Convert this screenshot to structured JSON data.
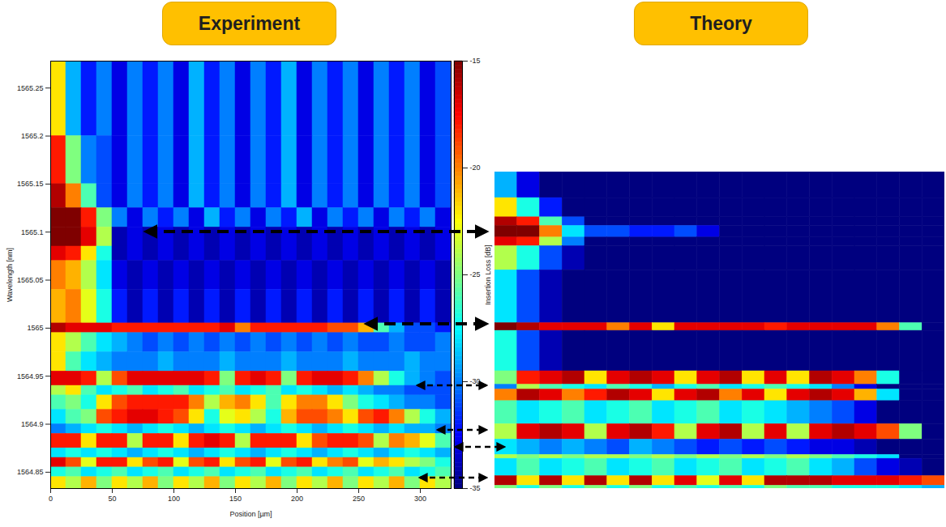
{
  "chart_data": [
    {
      "type": "heatmap",
      "title": "Experiment",
      "x_label": "Position [µm]",
      "y_label": "Wavelength [nm]",
      "xlim": [
        0,
        325
      ],
      "ylim": [
        1564.833,
        1565.278
      ],
      "xticks": [
        0,
        50,
        100,
        150,
        200,
        250,
        300
      ],
      "yticks": [
        1564.85,
        1564.9,
        1564.95,
        1565,
        1565.05,
        1565.1,
        1565.15,
        1565.2,
        1565.25
      ],
      "colorbar": {
        "label": "Insertion Loss [dB]",
        "range": [
          -35,
          -15
        ],
        "ticks": [
          -15,
          -20,
          -25,
          -30,
          -35
        ],
        "colors": [
          "#00007f",
          "#0000ff",
          "#007fff",
          "#00ffff",
          "#7fff7f",
          "#ffff00",
          "#ff7f00",
          "#ff0000",
          "#7f0000"
        ]
      },
      "cells": {
        "x_edges": [
          0,
          12.5,
          25,
          37.5,
          50,
          62.5,
          75,
          87.5,
          100,
          112.5,
          125,
          137.5,
          150,
          162.5,
          175,
          187.5,
          200,
          212.5,
          225,
          237.5,
          250,
          262.5,
          275,
          287.5,
          300,
          312.5,
          325
        ],
        "y_edges": [
          1565.278,
          1565.2,
          1565.15,
          1565.125,
          1565.105,
          1565.085,
          1565.07,
          1565.04,
          1565.005,
          1564.995,
          1564.975,
          1564.955,
          1564.94,
          1564.93,
          1564.915,
          1564.9,
          1564.89,
          1564.875,
          1564.865,
          1564.855,
          1564.845,
          1564.833
        ],
        "values": [
          [
            -22,
            -29,
            -32,
            -30,
            -33,
            -30,
            -32,
            -30,
            -33,
            -29,
            -32,
            -30,
            -33,
            -30,
            -32,
            -29,
            -33,
            -30,
            -32,
            -30,
            -33,
            -30,
            -32,
            -30,
            -33,
            -31
          ],
          [
            -18,
            -25,
            -30,
            -31,
            -33,
            -30,
            -32,
            -30,
            -33,
            -29,
            -32,
            -30,
            -33,
            -30,
            -32,
            -29,
            -33,
            -30,
            -32,
            -30,
            -33,
            -30,
            -32,
            -30,
            -33,
            -31
          ],
          [
            -16,
            -20,
            -26,
            -31,
            -33,
            -30,
            -32,
            -30,
            -33,
            -29,
            -32,
            -30,
            -33,
            -30,
            -32,
            -29,
            -33,
            -30,
            -32,
            -30,
            -33,
            -30,
            -32,
            -30,
            -33,
            -31
          ],
          [
            -15,
            -15,
            -18,
            -25,
            -30,
            -33,
            -30,
            -32,
            -30,
            -33,
            -29,
            -32,
            -30,
            -33,
            -30,
            -32,
            -29,
            -33,
            -30,
            -32,
            -30,
            -33,
            -30,
            -32,
            -30,
            -33
          ],
          [
            -15,
            -15,
            -17,
            -24,
            -34,
            -33,
            -34,
            -33,
            -34,
            -33,
            -34,
            -33,
            -34,
            -33,
            -34,
            -33,
            -34,
            -33,
            -34,
            -33,
            -34,
            -33,
            -34,
            -33,
            -34,
            -33
          ],
          [
            -17,
            -18,
            -22,
            -27,
            -34,
            -33,
            -34,
            -33,
            -34,
            -33,
            -34,
            -33,
            -34,
            -33,
            -34,
            -33,
            -34,
            -33,
            -34,
            -33,
            -34,
            -33,
            -34,
            -33,
            -34,
            -33
          ],
          [
            -20,
            -21,
            -24,
            -28,
            -33,
            -34,
            -33,
            -34,
            -33,
            -34,
            -33,
            -34,
            -33,
            -34,
            -33,
            -34,
            -33,
            -34,
            -33,
            -34,
            -33,
            -34,
            -33,
            -34,
            -33,
            -34
          ],
          [
            -21,
            -20,
            -23,
            -27,
            -32,
            -34,
            -32,
            -34,
            -32,
            -34,
            -32,
            -34,
            -32,
            -34,
            -32,
            -34,
            -32,
            -34,
            -32,
            -34,
            -32,
            -34,
            -32,
            -34,
            -32,
            -34
          ],
          [
            -16,
            -17,
            -17,
            -17,
            -18,
            -18,
            -18,
            -18,
            -18,
            -18,
            -18,
            -17,
            -20,
            -18,
            -18,
            -18,
            -18,
            -18,
            -19,
            -19,
            -21,
            -26,
            -29,
            -31,
            -31,
            -32
          ],
          [
            -22,
            -24,
            -26,
            -28,
            -29,
            -30,
            -31,
            -30,
            -31,
            -30,
            -31,
            -30,
            -31,
            -30,
            -31,
            -30,
            -31,
            -30,
            -31,
            -30,
            -31,
            -31,
            -30,
            -31,
            -31,
            -30
          ],
          [
            -22,
            -26,
            -28,
            -29,
            -30,
            -30,
            -30,
            -29,
            -30,
            -30,
            -30,
            -29,
            -30,
            -30,
            -30,
            -29,
            -30,
            -30,
            -30,
            -29,
            -30,
            -30,
            -30,
            -29,
            -30,
            -30
          ],
          [
            -17,
            -17,
            -18,
            -24,
            -19,
            -17,
            -17,
            -17,
            -17,
            -17,
            -18,
            -25,
            -18,
            -17,
            -18,
            -25,
            -18,
            -17,
            -17,
            -18,
            -20,
            -24,
            -27,
            -29,
            -30,
            -31
          ],
          [
            -24,
            -22,
            -26,
            -28,
            -27,
            -26,
            -28,
            -27,
            -26,
            -28,
            -27,
            -26,
            -28,
            -27,
            -26,
            -28,
            -27,
            -28,
            -29,
            -28,
            -29,
            -30,
            -30,
            -31,
            -31,
            -31
          ],
          [
            -26,
            -25,
            -27,
            -22,
            -19,
            -18,
            -18,
            -18,
            -18,
            -20,
            -24,
            -21,
            -20,
            -22,
            -26,
            -22,
            -20,
            -20,
            -22,
            -25,
            -27,
            -28,
            -29,
            -30,
            -30,
            -31
          ],
          [
            -28,
            -26,
            -25,
            -19,
            -18,
            -17,
            -17,
            -18,
            -19,
            -22,
            -27,
            -23,
            -22,
            -24,
            -27,
            -21,
            -19,
            -19,
            -20,
            -22,
            -19,
            -18,
            -20,
            -24,
            -27,
            -29
          ],
          [
            -30,
            -29,
            -28,
            -27,
            -28,
            -29,
            -28,
            -27,
            -28,
            -29,
            -28,
            -27,
            -28,
            -29,
            -28,
            -27,
            -28,
            -29,
            -28,
            -27,
            -28,
            -29,
            -28,
            -29,
            -29,
            -30
          ],
          [
            -18,
            -18,
            -22,
            -18,
            -18,
            -24,
            -18,
            -18,
            -22,
            -18,
            -17,
            -18,
            -24,
            -18,
            -18,
            -18,
            -22,
            -19,
            -18,
            -18,
            -19,
            -24,
            -20,
            -21,
            -23,
            -26
          ],
          [
            -28,
            -27,
            -28,
            -27,
            -28,
            -29,
            -28,
            -27,
            -28,
            -29,
            -28,
            -27,
            -28,
            -29,
            -28,
            -27,
            -28,
            -29,
            -28,
            -27,
            -28,
            -29,
            -28,
            -27,
            -28,
            -29
          ],
          [
            -17,
            -19,
            -23,
            -18,
            -18,
            -22,
            -19,
            -18,
            -23,
            -19,
            -18,
            -22,
            -19,
            -18,
            -23,
            -19,
            -18,
            -22,
            -20,
            -19,
            -23,
            -21,
            -22,
            -24,
            -25,
            -27
          ],
          [
            -27,
            -26,
            -28,
            -27,
            -26,
            -28,
            -27,
            -26,
            -28,
            -27,
            -26,
            -28,
            -27,
            -26,
            -28,
            -27,
            -26,
            -28,
            -27,
            -26,
            -28,
            -27,
            -26,
            -28,
            -27,
            -26
          ],
          [
            -22,
            -24,
            -21,
            -25,
            -22,
            -24,
            -21,
            -25,
            -22,
            -24,
            -21,
            -25,
            -22,
            -24,
            -21,
            -25,
            -22,
            -24,
            -21,
            -25,
            -22,
            -24,
            -21,
            -25,
            -22,
            -24
          ]
        ]
      }
    },
    {
      "type": "heatmap",
      "title": "Theory",
      "tick_labels": false,
      "xlim": [
        0,
        100
      ],
      "ylim": [
        1564.833,
        1565.162
      ],
      "cells": {
        "x_edges": [
          0,
          5,
          10,
          15,
          20,
          25,
          30,
          35,
          40,
          45,
          50,
          55,
          60,
          65,
          70,
          75,
          80,
          85,
          90,
          95,
          100
        ],
        "y_edges": [
          1565.162,
          1565.135,
          1565.115,
          1565.106,
          1565.094,
          1565.085,
          1565.06,
          1565.005,
          1564.997,
          1564.955,
          1564.941,
          1564.936,
          1564.924,
          1564.9,
          1564.884,
          1564.868,
          1564.864,
          1564.846,
          1564.836,
          1564.833
        ],
        "values": [
          [
            -29,
            -33,
            -35,
            -35,
            -35,
            -35,
            -35,
            -35,
            -35,
            -35,
            -35,
            -35,
            -35,
            -35,
            -35,
            -35,
            -35,
            -35,
            -35,
            -35
          ],
          [
            -22,
            -27,
            -32,
            -35,
            -35,
            -35,
            -35,
            -35,
            -35,
            -35,
            -35,
            -35,
            -35,
            -35,
            -35,
            -35,
            -35,
            -35,
            -35,
            -35
          ],
          [
            -16,
            -18,
            -26,
            -31,
            -35,
            -35,
            -35,
            -35,
            -35,
            -35,
            -35,
            -35,
            -35,
            -35,
            -35,
            -35,
            -35,
            -35,
            -35,
            -35
          ],
          [
            -15,
            -15,
            -20,
            -28,
            -31,
            -31,
            -32,
            -32,
            -31,
            -33,
            -35,
            -35,
            -35,
            -35,
            -35,
            -35,
            -35,
            -35,
            -35,
            -35
          ],
          [
            -17,
            -18,
            -24,
            -30,
            -35,
            -35,
            -35,
            -35,
            -35,
            -35,
            -35,
            -35,
            -35,
            -35,
            -35,
            -35,
            -35,
            -35,
            -35,
            -35
          ],
          [
            -24,
            -27,
            -31,
            -34,
            -35,
            -35,
            -35,
            -35,
            -35,
            -35,
            -35,
            -35,
            -35,
            -35,
            -35,
            -35,
            -35,
            -35,
            -35,
            -35
          ],
          [
            -28,
            -31,
            -34,
            -35,
            -35,
            -35,
            -35,
            -35,
            -35,
            -35,
            -35,
            -35,
            -35,
            -35,
            -35,
            -35,
            -35,
            -35,
            -35,
            -35
          ],
          [
            -15,
            -16,
            -17,
            -17,
            -17,
            -20,
            -17,
            -22,
            -17,
            -17,
            -17,
            -17,
            -18,
            -17,
            -17,
            -17,
            -17,
            -20,
            -26,
            -35
          ],
          [
            -27,
            -31,
            -34,
            -35,
            -35,
            -35,
            -35,
            -35,
            -35,
            -35,
            -35,
            -35,
            -35,
            -35,
            -35,
            -35,
            -35,
            -35,
            -35,
            -35
          ],
          [
            -25,
            -18,
            -17,
            -16,
            -22,
            -17,
            -16,
            -17,
            -22,
            -17,
            -16,
            -22,
            -17,
            -22,
            -16,
            -17,
            -20,
            -27,
            -35,
            -35
          ],
          [
            -30,
            -24,
            -26,
            -27,
            -28,
            -26,
            -27,
            -29,
            -27,
            -26,
            -28,
            -27,
            -26,
            -27,
            -28,
            -30,
            -33,
            -35,
            -35,
            -35
          ],
          [
            -20,
            -16,
            -17,
            -20,
            -18,
            -16,
            -17,
            -22,
            -17,
            -16,
            -20,
            -17,
            -22,
            -17,
            -16,
            -17,
            -21,
            -28,
            -35,
            -35
          ],
          [
            -26,
            -28,
            -27,
            -26,
            -28,
            -27,
            -26,
            -28,
            -27,
            -26,
            -28,
            -27,
            -28,
            -29,
            -30,
            -31,
            -33,
            -35,
            -35,
            -35
          ],
          [
            -24,
            -17,
            -16,
            -17,
            -24,
            -17,
            -16,
            -18,
            -24,
            -17,
            -16,
            -24,
            -17,
            -24,
            -17,
            -16,
            -17,
            -19,
            -25,
            -35
          ],
          [
            -28,
            -29,
            -30,
            -29,
            -30,
            -31,
            -29,
            -30,
            -31,
            -32,
            -31,
            -32,
            -31,
            -32,
            -33,
            -33,
            -34,
            -35,
            -35,
            -35
          ],
          [
            -24,
            -25,
            -24,
            -25,
            -24,
            -24,
            -25,
            -24,
            -25,
            -24,
            -25,
            -24,
            -25,
            -24,
            -25,
            -26,
            -27,
            -28,
            -35,
            -35
          ],
          [
            -28,
            -26,
            -28,
            -27,
            -26,
            -28,
            -27,
            -26,
            -28,
            -27,
            -26,
            -28,
            -27,
            -26,
            -28,
            -29,
            -31,
            -33,
            -34,
            -35
          ],
          [
            -16,
            -22,
            -16,
            -22,
            -16,
            -22,
            -16,
            -22,
            -17,
            -23,
            -17,
            -22,
            -16,
            -16,
            -16,
            -17,
            -17,
            -17,
            -18,
            -19
          ],
          [
            -25,
            -27,
            -25,
            -27,
            -25,
            -27,
            -25,
            -27,
            -26,
            -27,
            -26,
            -27,
            -25,
            -26,
            -26,
            -27,
            -27,
            -27,
            -28,
            -29
          ]
        ]
      }
    }
  ]
}
